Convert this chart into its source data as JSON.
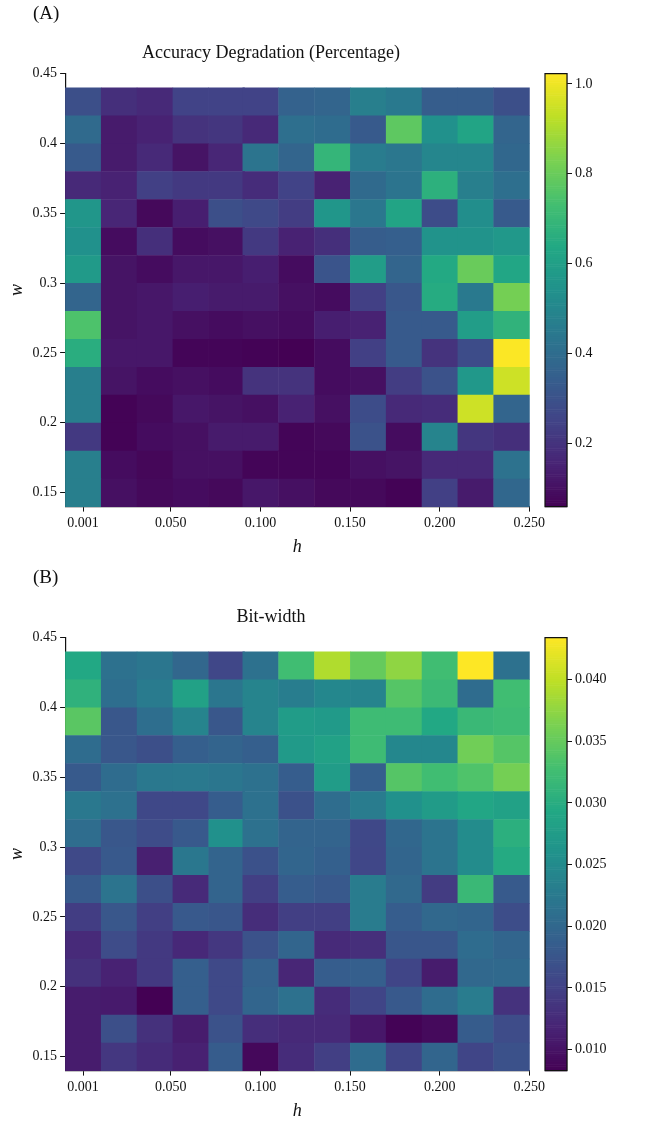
{
  "chart_data": [
    {
      "type": "heatmap",
      "title": "Accuracy Degradation (Percentage)",
      "xlabel": "h",
      "ylabel": "w",
      "annotations": [
        "(A)"
      ],
      "x": [
        0.001,
        0.021,
        0.041,
        0.061,
        0.081,
        0.1,
        0.12,
        0.14,
        0.16,
        0.18,
        0.2,
        0.22,
        0.24
      ],
      "y": [
        0.43,
        0.41,
        0.39,
        0.37,
        0.35,
        0.33,
        0.31,
        0.29,
        0.27,
        0.25,
        0.23,
        0.21,
        0.19,
        0.17,
        0.15
      ],
      "xlim": [
        -0.009,
        0.25
      ],
      "xticks": [
        {
          "value": 0.001,
          "label": "0.001"
        },
        {
          "value": 0.05,
          "label": "0.050"
        },
        {
          "value": 0.1,
          "label": "0.100"
        },
        {
          "value": 0.15,
          "label": "0.150"
        },
        {
          "value": 0.2,
          "label": "0.200"
        },
        {
          "value": 0.25,
          "label": "0.250"
        }
      ],
      "ylim": [
        0.14,
        0.45
      ],
      "yticks": [
        0.15,
        0.2,
        0.25,
        0.3,
        0.35,
        0.4,
        0.45
      ],
      "clim": [
        0.059,
        1.023
      ],
      "cticks": [
        0.2,
        0.4,
        0.6,
        0.8,
        {
          "value": 1,
          "label": "1.0"
        }
      ],
      "cells": [
        [
          0.29,
          0.19,
          0.17,
          0.25,
          0.25,
          0.25,
          0.36,
          0.37,
          0.47,
          0.45,
          0.34,
          0.34,
          0.29
        ],
        [
          0.39,
          0.13,
          0.15,
          0.2,
          0.21,
          0.17,
          0.41,
          0.4,
          0.33,
          0.78,
          0.54,
          0.62,
          0.37
        ],
        [
          0.33,
          0.13,
          0.17,
          0.11,
          0.16,
          0.43,
          0.37,
          0.69,
          0.46,
          0.44,
          0.5,
          0.5,
          0.38
        ],
        [
          0.17,
          0.15,
          0.24,
          0.22,
          0.22,
          0.18,
          0.25,
          0.15,
          0.39,
          0.43,
          0.67,
          0.47,
          0.41
        ],
        [
          0.56,
          0.16,
          0.08,
          0.14,
          0.29,
          0.27,
          0.23,
          0.56,
          0.44,
          0.62,
          0.28,
          0.53,
          0.33
        ],
        [
          0.54,
          0.09,
          0.19,
          0.09,
          0.1,
          0.22,
          0.15,
          0.19,
          0.34,
          0.35,
          0.55,
          0.55,
          0.57
        ],
        [
          0.58,
          0.11,
          0.09,
          0.12,
          0.12,
          0.14,
          0.09,
          0.31,
          0.59,
          0.37,
          0.64,
          0.8,
          0.63
        ],
        [
          0.37,
          0.11,
          0.12,
          0.14,
          0.13,
          0.13,
          0.1,
          0.09,
          0.24,
          0.32,
          0.65,
          0.45,
          0.82
        ],
        [
          0.75,
          0.11,
          0.12,
          0.1,
          0.09,
          0.1,
          0.09,
          0.14,
          0.15,
          0.33,
          0.33,
          0.59,
          0.68
        ],
        [
          0.66,
          0.12,
          0.12,
          0.07,
          0.07,
          0.065,
          0.06,
          0.09,
          0.24,
          0.33,
          0.2,
          0.28,
          1.02
        ],
        [
          0.47,
          0.11,
          0.09,
          0.1,
          0.09,
          0.2,
          0.2,
          0.09,
          0.1,
          0.23,
          0.3,
          0.57,
          0.95
        ],
        [
          0.47,
          0.065,
          0.08,
          0.12,
          0.11,
          0.1,
          0.15,
          0.1,
          0.28,
          0.17,
          0.18,
          0.95,
          0.37
        ],
        [
          0.22,
          0.065,
          0.09,
          0.1,
          0.13,
          0.13,
          0.07,
          0.08,
          0.3,
          0.09,
          0.49,
          0.21,
          0.19
        ],
        [
          0.47,
          0.09,
          0.075,
          0.1,
          0.1,
          0.07,
          0.07,
          0.07,
          0.1,
          0.11,
          0.17,
          0.17,
          0.42
        ],
        [
          0.47,
          0.1,
          0.08,
          0.09,
          0.08,
          0.12,
          0.1,
          0.08,
          0.08,
          0.065,
          0.24,
          0.13,
          0.38
        ]
      ]
    },
    {
      "type": "heatmap",
      "title": "Bit-width",
      "xlabel": "h",
      "ylabel": "w",
      "annotations": [
        "(B)"
      ],
      "x": [
        0.001,
        0.021,
        0.041,
        0.061,
        0.081,
        0.1,
        0.12,
        0.14,
        0.16,
        0.18,
        0.2,
        0.22,
        0.24
      ],
      "y": [
        0.43,
        0.41,
        0.39,
        0.37,
        0.35,
        0.33,
        0.31,
        0.29,
        0.27,
        0.25,
        0.23,
        0.21,
        0.19,
        0.17,
        0.15
      ],
      "xlim": [
        -0.009,
        0.25
      ],
      "xticks": [
        {
          "value": 0.001,
          "label": "0.001"
        },
        {
          "value": 0.05,
          "label": "0.050"
        },
        {
          "value": 0.1,
          "label": "0.100"
        },
        {
          "value": 0.15,
          "label": "0.150"
        },
        {
          "value": 0.2,
          "label": "0.200"
        },
        {
          "value": 0.25,
          "label": "0.250"
        }
      ],
      "ylim": [
        0.14,
        0.45
      ],
      "yticks": [
        0.15,
        0.2,
        0.25,
        0.3,
        0.35,
        0.4,
        0.45
      ],
      "clim": [
        0.0083,
        0.0434
      ],
      "cticks": [
        {
          "value": 0.01,
          "label": "0.010"
        },
        {
          "value": 0.015,
          "label": "0.015"
        },
        {
          "value": 0.02,
          "label": "0.020"
        },
        {
          "value": 0.025,
          "label": "0.025"
        },
        {
          "value": 0.03,
          "label": "0.030"
        },
        {
          "value": 0.035,
          "label": "0.035"
        },
        {
          "value": 0.04,
          "label": "0.040"
        }
      ],
      "cells": [
        [
          0.0294,
          0.0213,
          0.022,
          0.0199,
          0.0157,
          0.0213,
          0.0325,
          0.0392,
          0.035,
          0.0375,
          0.0325,
          0.0434,
          0.0213
        ],
        [
          0.0308,
          0.021,
          0.0227,
          0.0283,
          0.022,
          0.024,
          0.023,
          0.0245,
          0.024,
          0.034,
          0.032,
          0.0206,
          0.0325
        ],
        [
          0.0343,
          0.0178,
          0.021,
          0.024,
          0.0178,
          0.024,
          0.0276,
          0.0272,
          0.0322,
          0.0322,
          0.0294,
          0.0318,
          0.0322
        ],
        [
          0.0206,
          0.0178,
          0.0167,
          0.0189,
          0.0195,
          0.0189,
          0.0272,
          0.0283,
          0.0322,
          0.0245,
          0.0245,
          0.0357,
          0.034
        ],
        [
          0.0182,
          0.0206,
          0.0223,
          0.0225,
          0.022,
          0.0213,
          0.0186,
          0.0276,
          0.0189,
          0.034,
          0.0325,
          0.0336,
          0.036
        ],
        [
          0.0223,
          0.0213,
          0.0159,
          0.0159,
          0.0186,
          0.0213,
          0.017,
          0.0208,
          0.0229,
          0.0259,
          0.0274,
          0.029,
          0.0283
        ],
        [
          0.0208,
          0.0178,
          0.0163,
          0.018,
          0.0259,
          0.0213,
          0.0195,
          0.0195,
          0.0159,
          0.02,
          0.0218,
          0.0252,
          0.0304
        ],
        [
          0.016,
          0.018,
          0.0114,
          0.0222,
          0.0195,
          0.017,
          0.0197,
          0.019,
          0.0157,
          0.0197,
          0.0218,
          0.0252,
          0.0297
        ],
        [
          0.0182,
          0.0218,
          0.0167,
          0.0125,
          0.0195,
          0.0148,
          0.0186,
          0.018,
          0.0229,
          0.0202,
          0.0144,
          0.0318,
          0.0182
        ],
        [
          0.0146,
          0.0178,
          0.0148,
          0.018,
          0.0176,
          0.0128,
          0.0148,
          0.0148,
          0.0229,
          0.0186,
          0.0201,
          0.0197,
          0.0165
        ],
        [
          0.0125,
          0.0163,
          0.0141,
          0.0123,
          0.0139,
          0.0171,
          0.0197,
          0.0125,
          0.013,
          0.0176,
          0.0176,
          0.0206,
          0.0197
        ],
        [
          0.0132,
          0.0116,
          0.0141,
          0.0189,
          0.016,
          0.0193,
          0.012,
          0.0186,
          0.0189,
          0.0155,
          0.011,
          0.0201,
          0.0203
        ],
        [
          0.011,
          0.0108,
          0.0083,
          0.0189,
          0.016,
          0.0197,
          0.0213,
          0.0127,
          0.0155,
          0.018,
          0.0206,
          0.0229,
          0.0133
        ],
        [
          0.011,
          0.0167,
          0.0132,
          0.011,
          0.0171,
          0.0129,
          0.0124,
          0.0124,
          0.0105,
          0.0085,
          0.0092,
          0.0184,
          0.0163
        ],
        [
          0.011,
          0.0139,
          0.0126,
          0.0115,
          0.0184,
          0.009,
          0.0127,
          0.0148,
          0.0206,
          0.0155,
          0.0197,
          0.0155,
          0.017
        ]
      ]
    }
  ]
}
